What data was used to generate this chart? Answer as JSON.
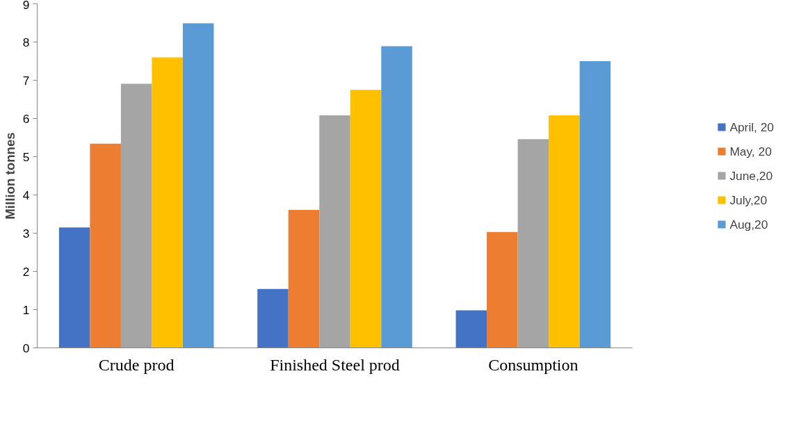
{
  "chart_data": {
    "type": "bar",
    "ylabel": "Million tonnes",
    "categories": [
      "Crude prod",
      "Finished Steel prod",
      "Consumption"
    ],
    "series": [
      {
        "name": "April, 20",
        "color": "#4472c4",
        "values": [
          3.15,
          1.54,
          0.98
        ]
      },
      {
        "name": "May, 20",
        "color": "#ed7d31",
        "values": [
          5.34,
          3.61,
          3.03
        ]
      },
      {
        "name": "June,20",
        "color": "#a5a5a5",
        "values": [
          6.91,
          6.08,
          5.46
        ]
      },
      {
        "name": "July,20",
        "color": "#ffc000",
        "values": [
          7.6,
          6.75,
          6.08
        ]
      },
      {
        "name": "Aug,20",
        "color": "#5b9bd5",
        "values": [
          8.49,
          7.89,
          7.5
        ]
      }
    ],
    "ylim": [
      0,
      9
    ],
    "yticks": [
      0,
      1,
      2,
      3,
      4,
      5,
      6,
      7,
      8,
      9
    ],
    "grid": false,
    "legend": "right"
  }
}
